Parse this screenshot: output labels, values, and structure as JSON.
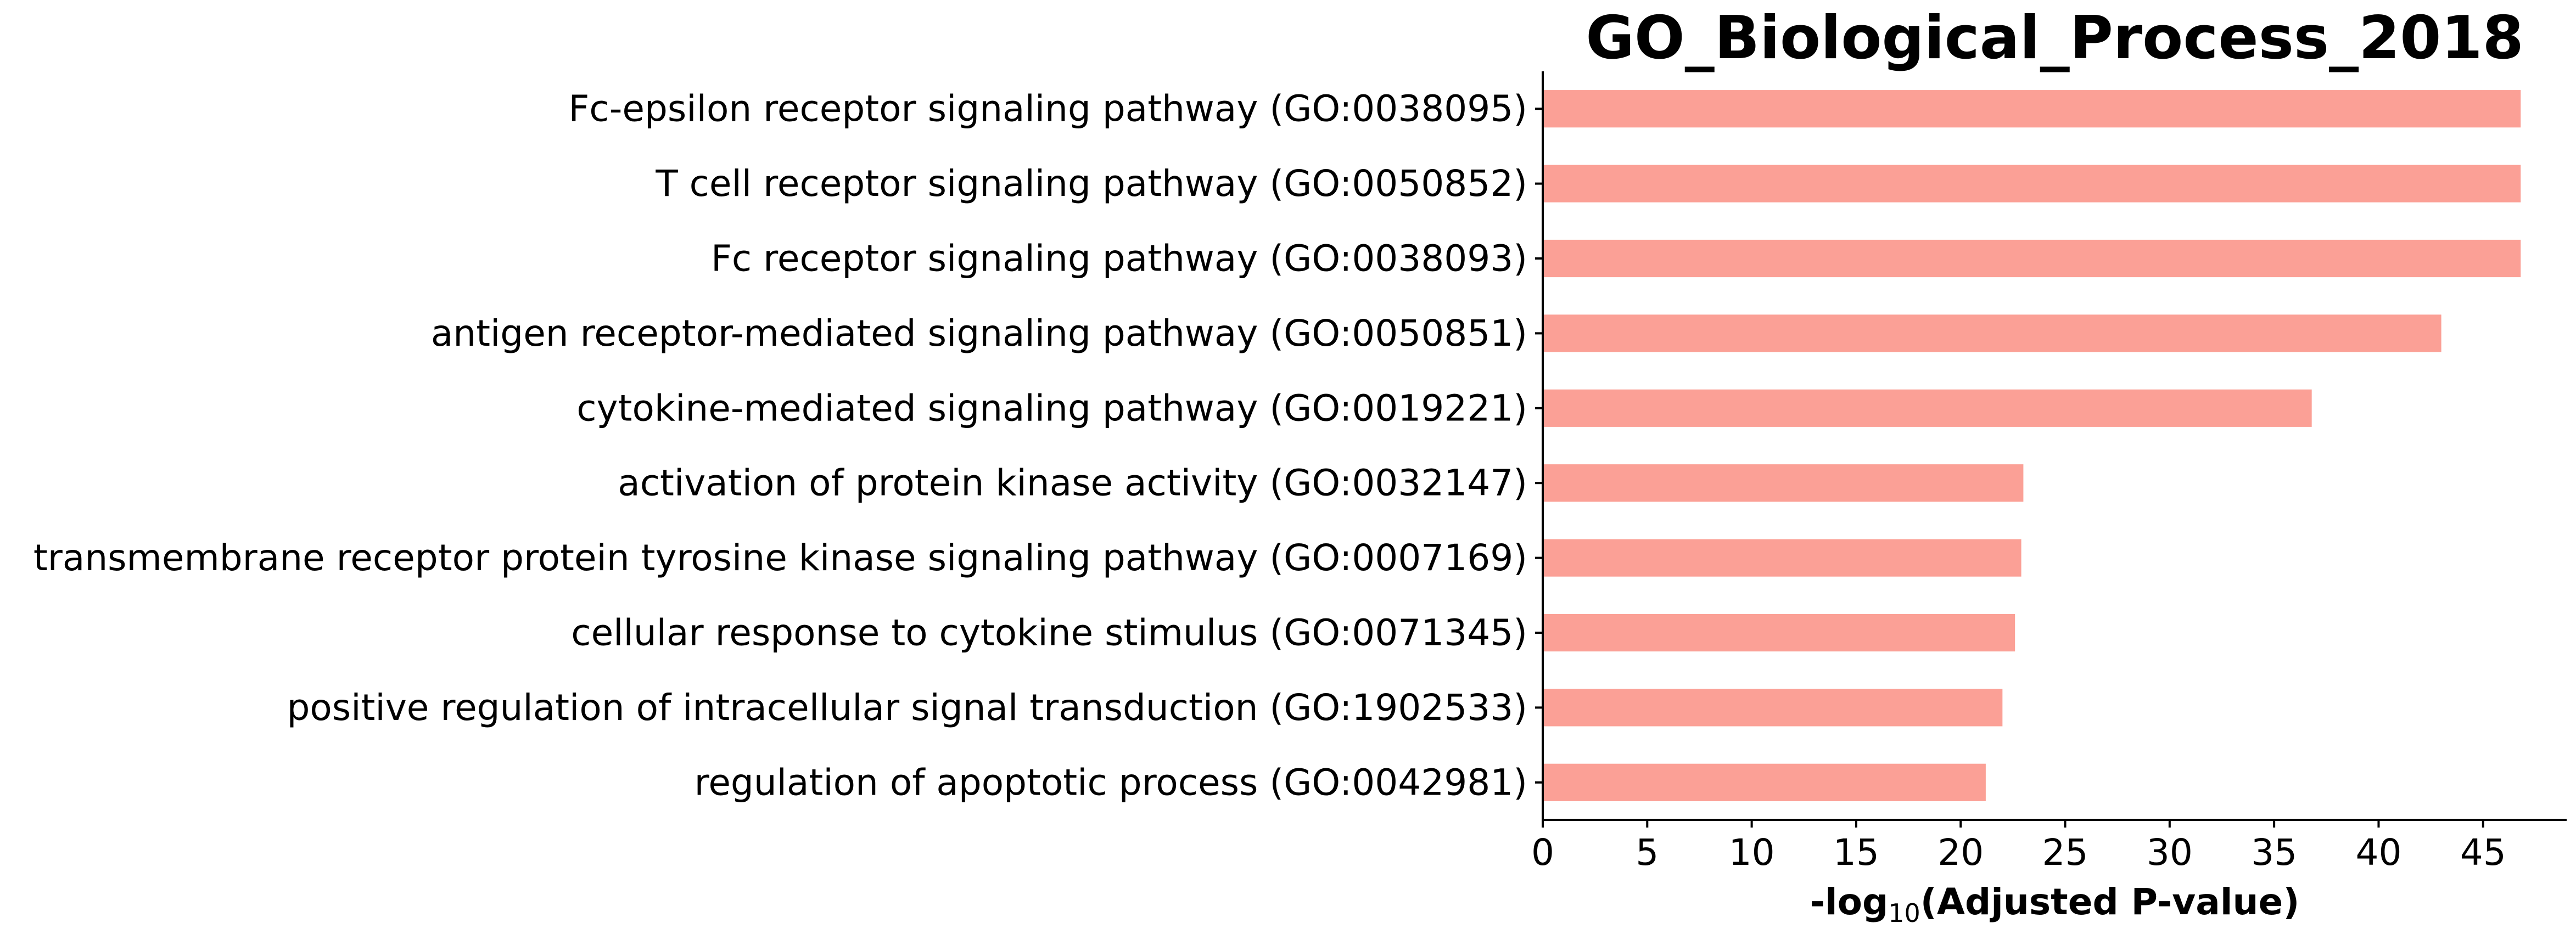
{
  "chart_data": {
    "type": "bar",
    "orientation": "horizontal",
    "title": "GO_Biological_Process_2018",
    "xlabel": {
      "prefix": "-log",
      "subscript": "10",
      "suffix": "(Adjusted P-value)"
    },
    "ylabel": "",
    "xlim": [
      0,
      49
    ],
    "xticks": [
      0,
      5,
      10,
      15,
      20,
      25,
      30,
      35,
      40,
      45
    ],
    "grid": false,
    "bar_color": "#fba096",
    "categories": [
      "Fc-epsilon receptor signaling pathway (GO:0038095)",
      "T cell receptor signaling pathway (GO:0050852)",
      "Fc receptor signaling pathway (GO:0038093)",
      "antigen receptor-mediated signaling pathway (GO:0050851)",
      "cytokine-mediated signaling pathway (GO:0019221)",
      "activation of protein kinase activity (GO:0032147)",
      "transmembrane receptor protein tyrosine kinase signaling pathway (GO:0007169)",
      "cellular response to cytokine stimulus (GO:0071345)",
      "positive regulation of intracellular signal transduction (GO:1902533)",
      "regulation of apoptotic process (GO:0042981)"
    ],
    "values": [
      46.8,
      46.8,
      46.8,
      43.0,
      36.8,
      23.0,
      22.9,
      22.6,
      22.0,
      21.2
    ]
  }
}
